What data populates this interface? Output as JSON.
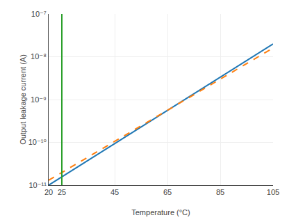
{
  "chart_data": {
    "type": "line",
    "xlabel": "Temperature (°C)",
    "ylabel": "Output leakage current (A)",
    "log": "y",
    "grid": true,
    "xlim": [
      20,
      105
    ],
    "ylim": [
      1e-11,
      1e-07
    ],
    "xticks": [
      20,
      25,
      45,
      65,
      85,
      105
    ],
    "yticks": [
      {
        "value": 1e-11,
        "label": "10⁻¹¹"
      },
      {
        "value": 1e-10,
        "label": "10⁻¹⁰"
      },
      {
        "value": 1e-09,
        "label": "10⁻⁹"
      },
      {
        "value": 1e-08,
        "label": "10⁻⁸"
      },
      {
        "value": 1e-07,
        "label": "10⁻⁷"
      }
    ],
    "series": [
      {
        "x": [
          20,
          105
        ],
        "values": [
          1e-11,
          2e-08
        ],
        "line_style": "solid"
      },
      {
        "x": [
          20,
          105
        ],
        "values": [
          1.3e-11,
          1.6e-08
        ],
        "line_style": "dashed"
      },
      {
        "x": [
          25,
          25
        ],
        "values": [
          1e-11,
          1e-07
        ],
        "line_style": "solid"
      }
    ]
  }
}
